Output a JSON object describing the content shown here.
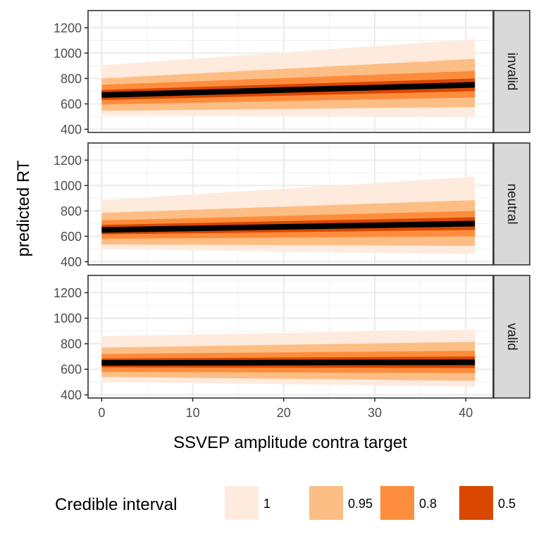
{
  "chart_data": {
    "type": "area",
    "xlabel": "SSVEP amplitude contra target",
    "ylabel": "predicted RT",
    "xlim": [
      -1.5,
      43
    ],
    "ylim": [
      375,
      1335
    ],
    "x_ticks": [
      0,
      10,
      20,
      30,
      40
    ],
    "y_ticks": [
      400,
      600,
      800,
      1000,
      1200
    ],
    "grid": true,
    "legend": {
      "title": "Credible interval",
      "position": "bottom",
      "entries": [
        {
          "label": "1",
          "color": "#FEEBDE"
        },
        {
          "label": "0.95",
          "color": "#FDBE85"
        },
        {
          "label": "0.8",
          "color": "#FD8D3C"
        },
        {
          "label": "0.5",
          "color": "#D94701"
        }
      ]
    },
    "colors": {
      "1": "#FEEBDE",
      "0.95": "#FDBE85",
      "0.8": "#FD8D3C",
      "0.5": "#D94701",
      "line": "#000000"
    },
    "x": [
      0,
      41
    ],
    "panels": [
      {
        "strip": "invalid",
        "median": [
          670,
          750
        ],
        "bands": [
          {
            "level": "1",
            "lower": [
              510,
              500
            ],
            "upper": [
              905,
              1110
            ]
          },
          {
            "level": "0.95",
            "lower": [
              545,
              575
            ],
            "upper": [
              800,
              955
            ]
          },
          {
            "level": "0.8",
            "lower": [
              595,
              650
            ],
            "upper": [
              750,
              860
            ]
          },
          {
            "level": "0.5",
            "lower": [
              630,
              700
            ],
            "upper": [
              710,
              800
            ]
          }
        ]
      },
      {
        "strip": "neutral",
        "median": [
          650,
          700
        ],
        "bands": [
          {
            "level": "1",
            "lower": [
              500,
              460
            ],
            "upper": [
              885,
              1070
            ]
          },
          {
            "level": "0.95",
            "lower": [
              535,
              525
            ],
            "upper": [
              785,
              885
            ]
          },
          {
            "level": "0.8",
            "lower": [
              580,
              600
            ],
            "upper": [
              725,
              800
            ]
          },
          {
            "level": "0.5",
            "lower": [
              615,
              650
            ],
            "upper": [
              690,
              750
            ]
          }
        ]
      },
      {
        "strip": "valid",
        "median": [
          650,
          655
        ],
        "bands": [
          {
            "level": "1",
            "lower": [
              500,
              465
            ],
            "upper": [
              860,
              910
            ]
          },
          {
            "level": "0.95",
            "lower": [
              540,
              510
            ],
            "upper": [
              770,
              815
            ]
          },
          {
            "level": "0.8",
            "lower": [
              580,
              570
            ],
            "upper": [
              720,
              745
            ]
          },
          {
            "level": "0.5",
            "lower": [
              615,
              610
            ],
            "upper": [
              685,
              700
            ]
          }
        ]
      }
    ]
  }
}
